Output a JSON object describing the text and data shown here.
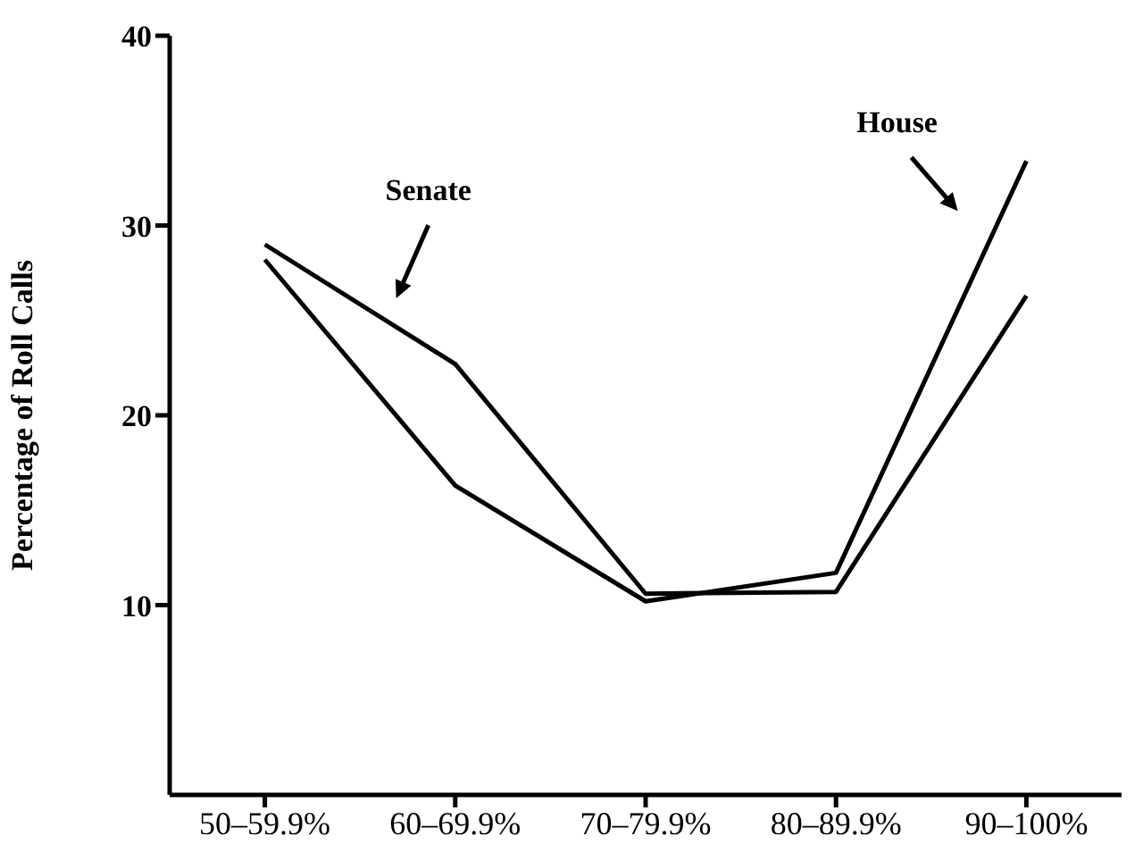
{
  "chart_data": {
    "type": "line",
    "ylabel": "Percentage of Roll Calls",
    "categories": [
      "50–59.9%",
      "60–69.9%",
      "70–79.9%",
      "80–89.9%",
      "90–100%"
    ],
    "series": [
      {
        "name": "Senate",
        "color": "#000000",
        "values": [
          29.0,
          22.7,
          10.6,
          10.7,
          26.3
        ]
      },
      {
        "name": "House",
        "color": "#000000",
        "values": [
          28.2,
          16.3,
          10.2,
          11.7,
          33.4
        ]
      }
    ],
    "ylim": [
      0,
      40
    ],
    "yticks": [
      10,
      20,
      30,
      40
    ],
    "grid": false,
    "legend": false,
    "marker": "none",
    "line_style": "solid"
  }
}
